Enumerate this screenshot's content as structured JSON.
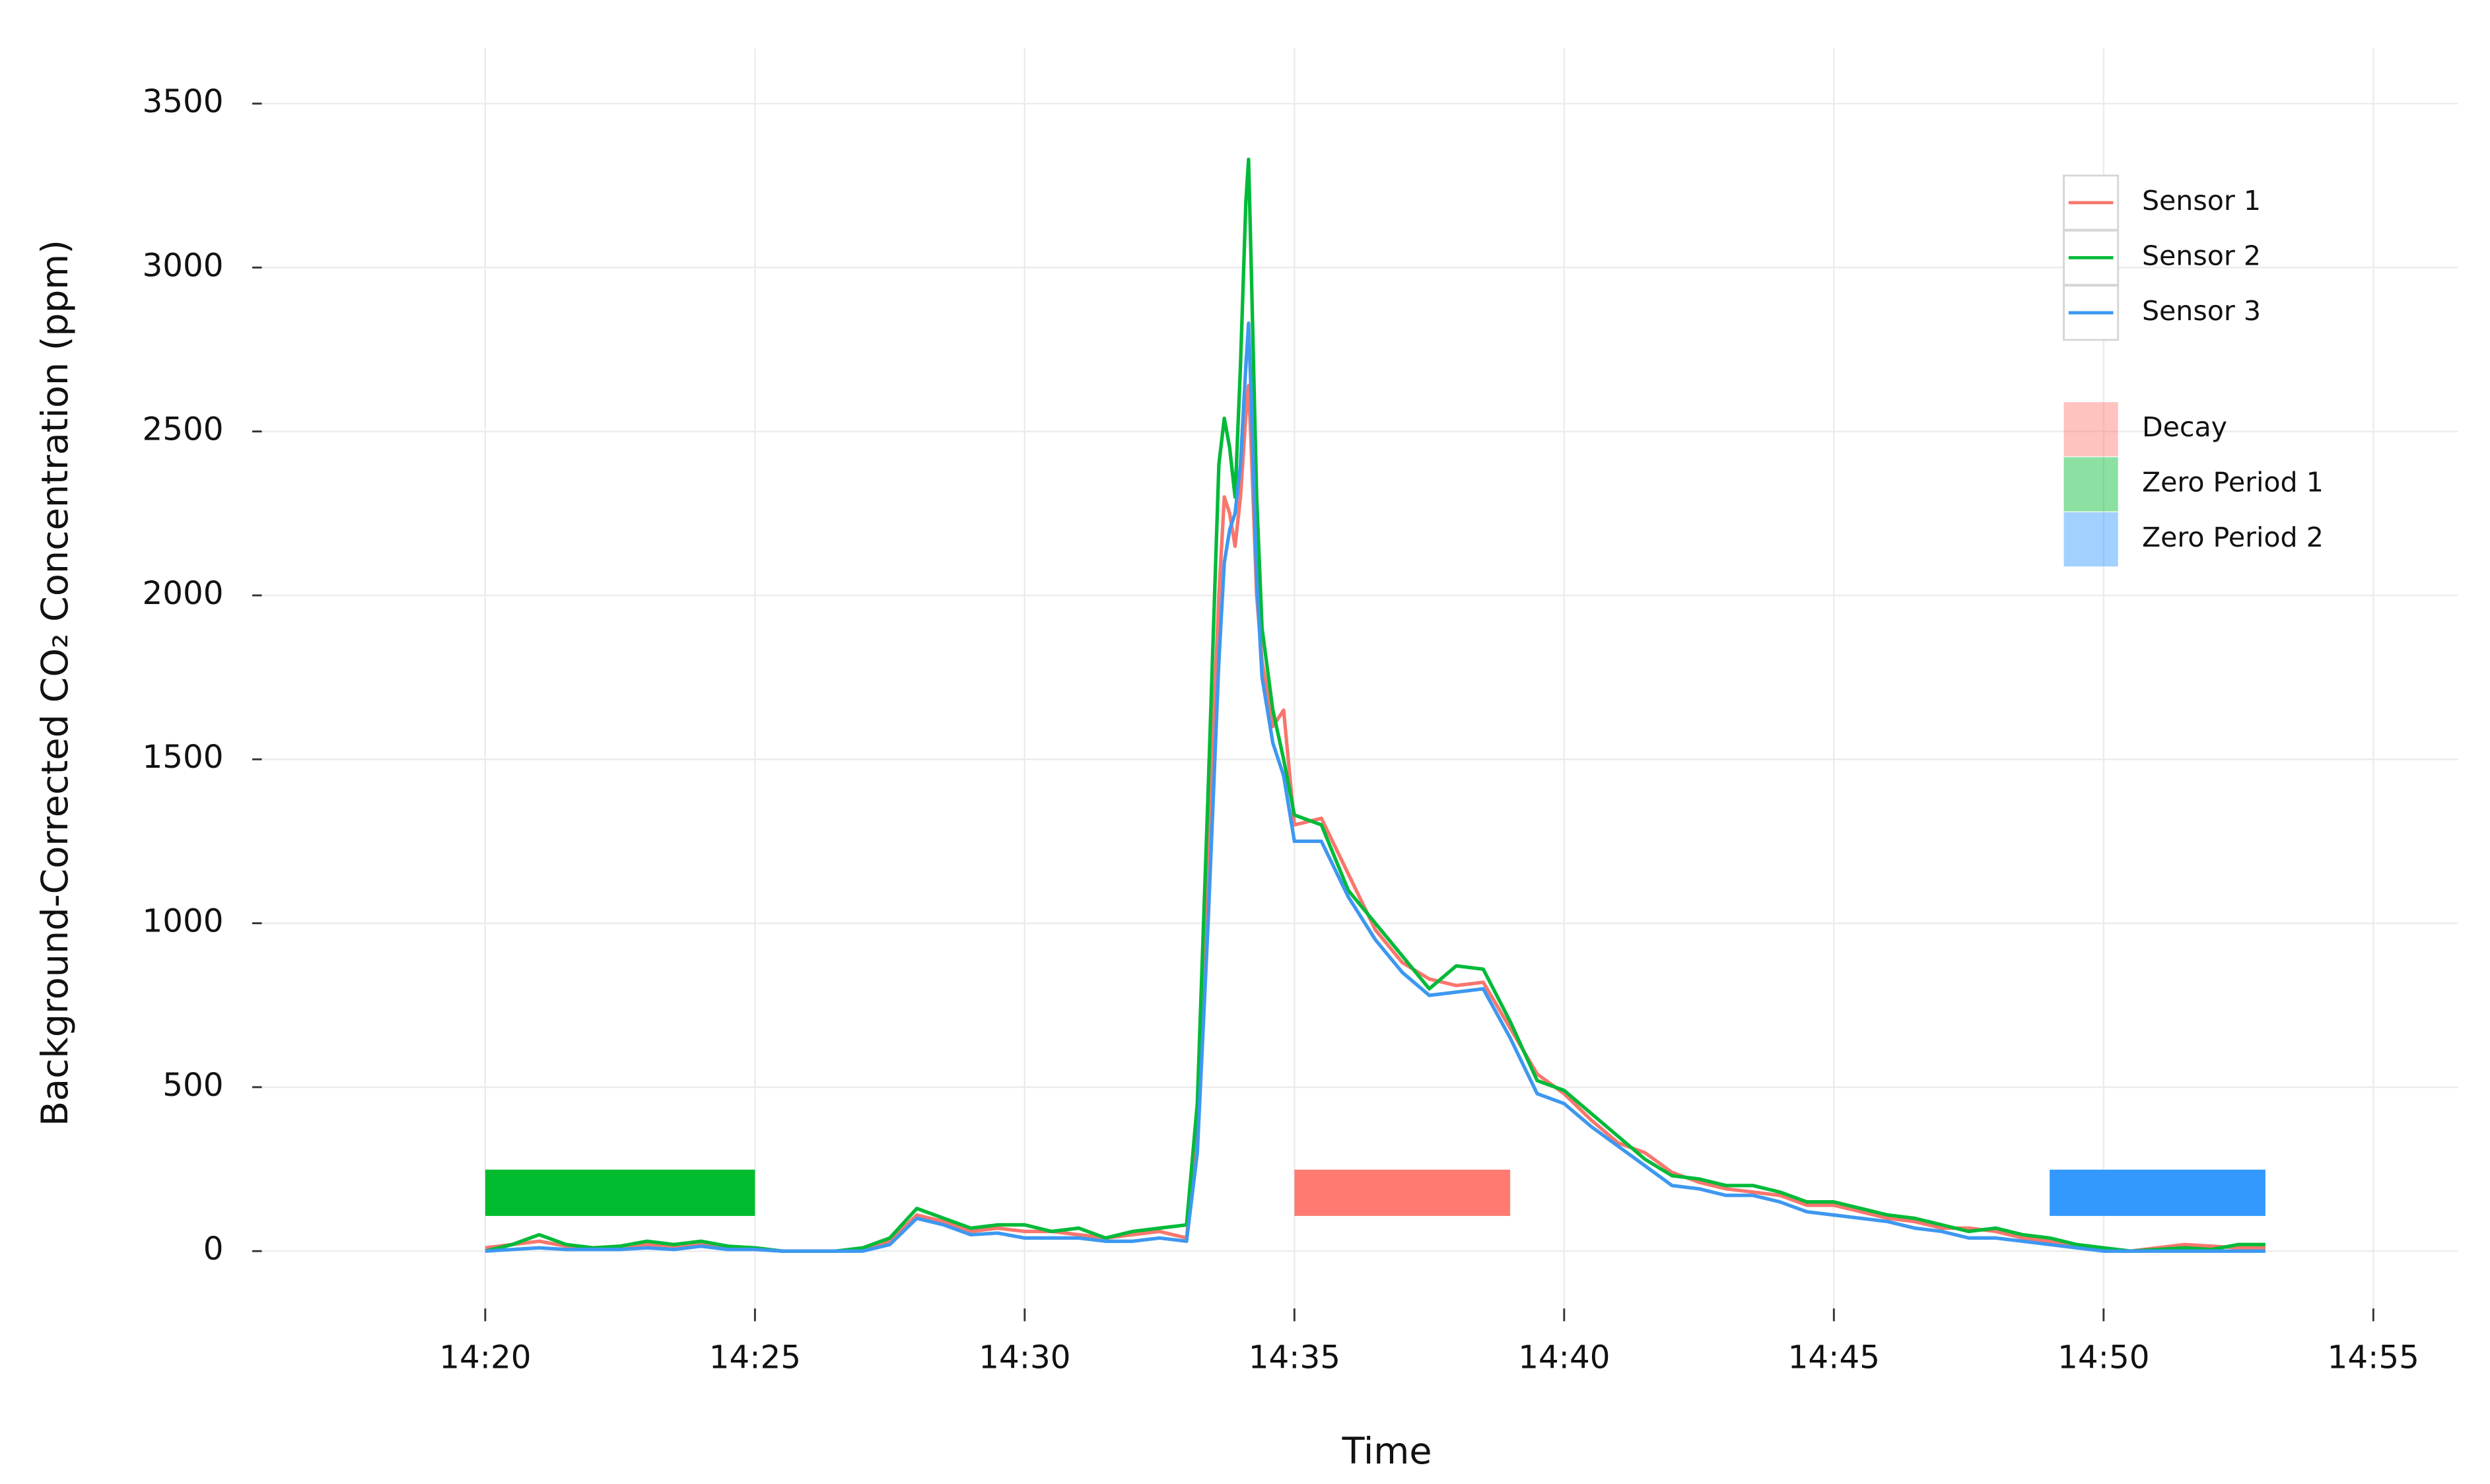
{
  "chart_data": {
    "type": "line",
    "xlabel": "Time",
    "ylabel": "Background-Corrected CO₂ Concentration (ppm)",
    "x": [
      860,
      860.5,
      861,
      861.5,
      862,
      862.5,
      863,
      863.5,
      864,
      864.5,
      865,
      865.5,
      866,
      866.5,
      867,
      867.5,
      868,
      868.5,
      869,
      869.5,
      870,
      870.5,
      871,
      871.5,
      872,
      872.5,
      873,
      873.2,
      873.4,
      873.6,
      873.7,
      873.8,
      873.9,
      874.0,
      874.1,
      874.15,
      874.2,
      874.3,
      874.4,
      874.6,
      874.8,
      875.0,
      875.5,
      876,
      876.5,
      877,
      877.5,
      878,
      878.5,
      879,
      879.5,
      880,
      880.5,
      881,
      881.5,
      882,
      882.5,
      883,
      883.5,
      884,
      884.5,
      885,
      885.5,
      886,
      886.5,
      887,
      887.5,
      888,
      888.5,
      889,
      889.5,
      890,
      890.5,
      891,
      891.5,
      892,
      892.5,
      893
    ],
    "series": [
      {
        "name": "Sensor 1",
        "color": "#f8766d",
        "values": [
          10,
          20,
          30,
          15,
          10,
          15,
          20,
          15,
          20,
          10,
          10,
          0,
          0,
          0,
          5,
          30,
          110,
          90,
          60,
          70,
          60,
          60,
          50,
          40,
          50,
          60,
          40,
          350,
          1200,
          2000,
          2300,
          2250,
          2150,
          2300,
          2550,
          2640,
          2450,
          2000,
          1800,
          1600,
          1650,
          1300,
          1320,
          1150,
          980,
          880,
          830,
          810,
          820,
          680,
          540,
          480,
          400,
          330,
          300,
          240,
          210,
          190,
          180,
          170,
          140,
          140,
          120,
          100,
          90,
          70,
          70,
          60,
          40,
          30,
          20,
          5,
          0,
          10,
          20,
          15,
          10,
          10
        ]
      },
      {
        "name": "Sensor 2",
        "color": "#00ba38",
        "values": [
          0,
          20,
          50,
          20,
          10,
          15,
          30,
          20,
          30,
          15,
          10,
          0,
          0,
          0,
          10,
          40,
          130,
          100,
          70,
          80,
          80,
          60,
          70,
          40,
          60,
          70,
          80,
          450,
          1400,
          2400,
          2540,
          2450,
          2300,
          2700,
          3200,
          3330,
          3000,
          2300,
          1900,
          1650,
          1500,
          1330,
          1300,
          1100,
          1000,
          900,
          800,
          870,
          860,
          700,
          520,
          490,
          420,
          350,
          280,
          230,
          220,
          200,
          200,
          180,
          150,
          150,
          130,
          110,
          100,
          80,
          60,
          70,
          50,
          40,
          20,
          10,
          0,
          5,
          10,
          5,
          20,
          20
        ]
      },
      {
        "name": "Sensor 3",
        "color": "#3d98f0",
        "values": [
          0,
          5,
          10,
          5,
          5,
          5,
          10,
          5,
          15,
          5,
          5,
          0,
          0,
          0,
          0,
          20,
          100,
          80,
          50,
          55,
          40,
          40,
          40,
          30,
          30,
          40,
          30,
          300,
          1000,
          1800,
          2100,
          2200,
          2250,
          2400,
          2700,
          2830,
          2600,
          2050,
          1750,
          1550,
          1450,
          1250,
          1250,
          1080,
          950,
          850,
          780,
          790,
          800,
          650,
          480,
          450,
          380,
          320,
          260,
          200,
          190,
          170,
          170,
          150,
          120,
          110,
          100,
          90,
          70,
          60,
          40,
          40,
          30,
          20,
          10,
          0,
          0,
          0,
          0,
          0,
          0,
          0
        ]
      }
    ],
    "periods": [
      {
        "name": "Decay",
        "color": "#ff7b72",
        "start": 875,
        "end": 879
      },
      {
        "name": "Zero Period 1",
        "color": "#00bb2e",
        "start": 860,
        "end": 865
      },
      {
        "name": "Zero Period 2",
        "color": "#3399ff",
        "start": 889,
        "end": 893
      }
    ],
    "xlim": [
      855.74,
      896.57
    ],
    "ylim": [
      -175,
      3670
    ],
    "xticks": [
      {
        "value": 860,
        "label": "14:20"
      },
      {
        "value": 865,
        "label": "14:25"
      },
      {
        "value": 870,
        "label": "14:30"
      },
      {
        "value": 875,
        "label": "14:35"
      },
      {
        "value": 880,
        "label": "14:40"
      },
      {
        "value": 885,
        "label": "14:45"
      },
      {
        "value": 890,
        "label": "14:50"
      },
      {
        "value": 895,
        "label": "14:55"
      }
    ],
    "yticks": [
      0,
      500,
      1000,
      1500,
      2000,
      2500,
      3000,
      3500
    ],
    "grid": true
  }
}
